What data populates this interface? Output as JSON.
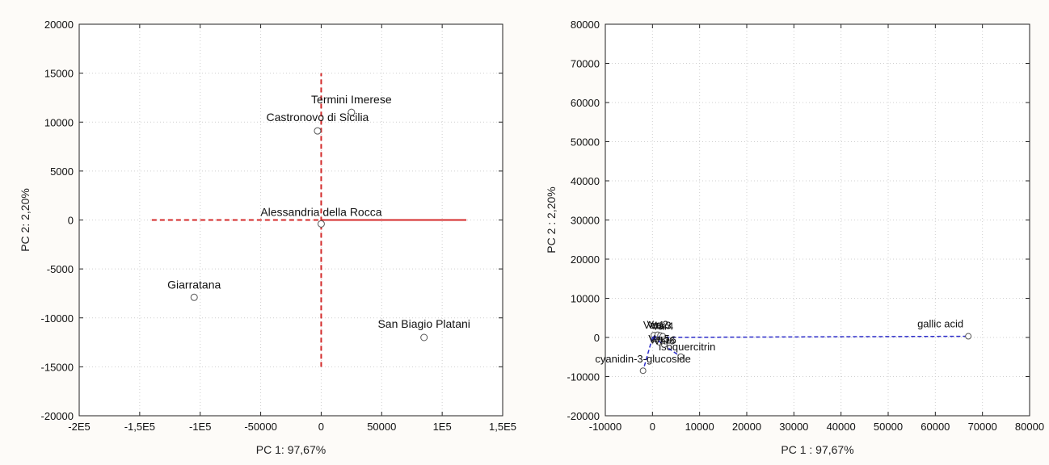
{
  "chart_data": [
    {
      "type": "scatter",
      "panel": "scores",
      "xlabel": "PC 1: 97,67%",
      "ylabel": "PC 2:  2,20%",
      "xlim": [
        -200000,
        150000
      ],
      "ylim": [
        -20000,
        20000
      ],
      "x_ticks": [
        {
          "value": -200000,
          "label": "-2E5"
        },
        {
          "value": -150000,
          "label": "-1,5E5"
        },
        {
          "value": -100000,
          "label": "-1E5"
        },
        {
          "value": -50000,
          "label": "-50000"
        },
        {
          "value": 0,
          "label": "0"
        },
        {
          "value": 50000,
          "label": "50000"
        },
        {
          "value": 100000,
          "label": "1E5"
        },
        {
          "value": 150000,
          "label": "1,5E5"
        }
      ],
      "y_ticks": [
        {
          "value": -20000,
          "label": "-20000"
        },
        {
          "value": -15000,
          "label": "-15000"
        },
        {
          "value": -10000,
          "label": "-10000"
        },
        {
          "value": -5000,
          "label": "-5000"
        },
        {
          "value": 0,
          "label": "0"
        },
        {
          "value": 5000,
          "label": "5000"
        },
        {
          "value": 10000,
          "label": "10000"
        },
        {
          "value": 15000,
          "label": "15000"
        },
        {
          "value": 20000,
          "label": "20000"
        }
      ],
      "grid": true,
      "points": [
        {
          "label": "Termini Imerese",
          "x": 25000,
          "y": 11000
        },
        {
          "label": "Castronovo di Sicilia",
          "x": -3000,
          "y": 9100
        },
        {
          "label": "Alessandria della Rocca",
          "x": 0,
          "y": -400
        },
        {
          "label": "Giarratana",
          "x": -105000,
          "y": -7900
        },
        {
          "label": "San Biagio Platani",
          "x": 85000,
          "y": -12000
        }
      ],
      "reference_lines": [
        {
          "orientation": "horizontal",
          "value": 0,
          "from": -140000,
          "to": 0,
          "style": "dashed",
          "color": "#d42a2a"
        },
        {
          "orientation": "horizontal",
          "value": 0,
          "from": 0,
          "to": 120000,
          "style": "solid",
          "color": "#d42a2a"
        },
        {
          "orientation": "vertical",
          "value": 0,
          "from": -15000,
          "to": 15000,
          "style": "dashed",
          "color": "#d42a2a"
        }
      ]
    },
    {
      "type": "scatter",
      "panel": "loadings",
      "xlabel": "PC 1 : 97,67%",
      "ylabel": "PC 2 :  2,20%",
      "xlim": [
        -10000,
        80000
      ],
      "ylim": [
        -20000,
        80000
      ],
      "x_ticks": [
        {
          "value": -10000,
          "label": "-10000"
        },
        {
          "value": 0,
          "label": "0"
        },
        {
          "value": 10000,
          "label": "10000"
        },
        {
          "value": 20000,
          "label": "20000"
        },
        {
          "value": 30000,
          "label": "30000"
        },
        {
          "value": 40000,
          "label": "40000"
        },
        {
          "value": 50000,
          "label": "50000"
        },
        {
          "value": 60000,
          "label": "60000"
        },
        {
          "value": 70000,
          "label": "70000"
        },
        {
          "value": 80000,
          "label": "80000"
        }
      ],
      "y_ticks": [
        {
          "value": -20000,
          "label": "-20000"
        },
        {
          "value": -10000,
          "label": "-10000"
        },
        {
          "value": 0,
          "label": "0"
        },
        {
          "value": 10000,
          "label": "10000"
        },
        {
          "value": 20000,
          "label": "20000"
        },
        {
          "value": 30000,
          "label": "30000"
        },
        {
          "value": 40000,
          "label": "40000"
        },
        {
          "value": 50000,
          "label": "50000"
        },
        {
          "value": 60000,
          "label": "60000"
        },
        {
          "value": 70000,
          "label": "70000"
        },
        {
          "value": 80000,
          "label": "80000"
        }
      ],
      "grid": true,
      "vector_color": "#2b2bc8",
      "vectors": [
        {
          "label": "gallic acid",
          "x": 67000,
          "y": 300,
          "label_anchor": "end",
          "label_dx": -6,
          "label_dy": -11
        },
        {
          "label": "isoquercitrin",
          "x": 6000,
          "y": -4900,
          "label_anchor": "middle",
          "label_dx": 8,
          "label_dy": -8
        },
        {
          "label": "cyanidin-3-glucoside",
          "x": -2000,
          "y": -8500,
          "label_anchor": "middle",
          "label_dx": 0,
          "label_dy": -10
        },
        {
          "label": "Var16",
          "x": 800,
          "y": -500,
          "label_anchor": "middle",
          "label_dx": 8,
          "label_dy": 5
        },
        {
          "label": "Var1",
          "x": 300,
          "y": 600,
          "label_anchor": "middle",
          "label_dx": 0,
          "label_dy": -8
        },
        {
          "label": "Var2",
          "x": 1100,
          "y": 700,
          "label_anchor": "middle",
          "label_dx": 0,
          "label_dy": -8
        },
        {
          "label": "Var3",
          "x": 1700,
          "y": 500,
          "label_anchor": "middle",
          "label_dx": 0,
          "label_dy": -8
        },
        {
          "label": "Var4",
          "x": 2200,
          "y": 300,
          "label_anchor": "middle",
          "label_dx": 0,
          "label_dy": -8
        },
        {
          "label": "Var5",
          "x": 1400,
          "y": -1200,
          "label_anchor": "middle",
          "label_dx": 0,
          "label_dy": 0
        },
        {
          "label": "Var6",
          "x": 2500,
          "y": -1800,
          "label_anchor": "middle",
          "label_dx": 0,
          "label_dy": 0
        }
      ]
    }
  ]
}
